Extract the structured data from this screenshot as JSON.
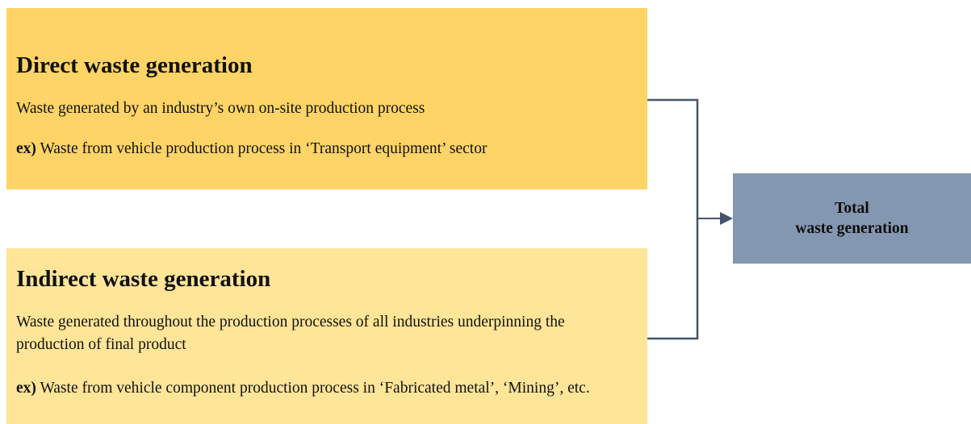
{
  "sources": [
    {
      "title": "Direct waste generation",
      "description": "Waste generated by an industry’s own on-site production process",
      "example": {
        "prefix": "ex)",
        "text": "Waste from vehicle production process in ‘Transport equipment’ sector"
      }
    },
    {
      "title": "Indirect waste generation",
      "description": "Waste generated throughout the production processes of all industries underpinning the production of final product",
      "example": {
        "prefix": "ex)",
        "text": "Waste from vehicle component production process in ‘Fabricated metal’, ‘Mining’, etc."
      }
    }
  ],
  "target": {
    "lines": [
      "Total",
      "waste generation"
    ]
  }
}
